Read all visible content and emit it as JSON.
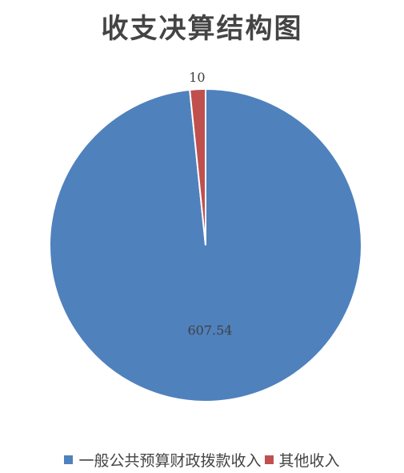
{
  "chart_data": {
    "type": "pie",
    "title": "收支决算结构图",
    "categories": [
      "一般公共预算财政拨款收入",
      "其他收入"
    ],
    "values": [
      607.54,
      10
    ],
    "data_labels": [
      "607.54",
      "10"
    ],
    "colors": [
      "#4f81bd",
      "#c0504d"
    ],
    "legend_position": "bottom"
  }
}
